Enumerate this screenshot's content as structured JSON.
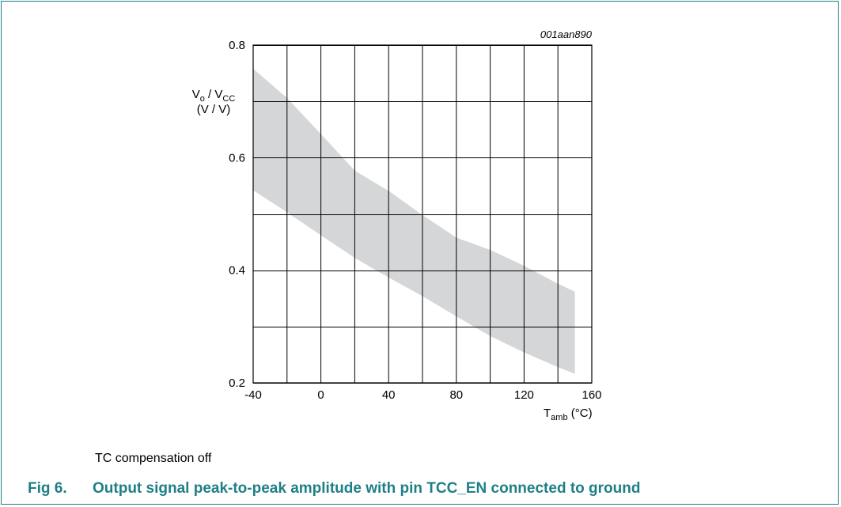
{
  "figure": {
    "id_label": "001aan890",
    "note": "TC compensation off",
    "caption_number": "Fig 6.",
    "caption_text": "Output signal peak-to-peak amplitude with pin TCC_EN connected to ground",
    "accent_color": "#1f7f86"
  },
  "chart_data": {
    "type": "area",
    "ylabel_main": "V",
    "ylabel_sub1": "o",
    "ylabel_mid": " / V",
    "ylabel_sub2": "CC",
    "ylabel_units": "(V / V)",
    "xlabel_main": "T",
    "xlabel_sub": "amb",
    "xlabel_units": " (°C)",
    "xlim": [
      -40,
      160
    ],
    "ylim": [
      0.2,
      0.8
    ],
    "xticks": [
      "-40",
      "0",
      "40",
      "80",
      "120",
      "160"
    ],
    "yticks": [
      "0.8",
      "0.6",
      "0.4",
      "0.2"
    ],
    "grid": true,
    "band": {
      "color": "#d4d6d8",
      "upper": [
        {
          "x": -40,
          "y": 0.758
        },
        {
          "x": -20,
          "y": 0.706
        },
        {
          "x": 0,
          "y": 0.642
        },
        {
          "x": 20,
          "y": 0.577
        },
        {
          "x": 40,
          "y": 0.541
        },
        {
          "x": 60,
          "y": 0.498
        },
        {
          "x": 80,
          "y": 0.458
        },
        {
          "x": 100,
          "y": 0.436
        },
        {
          "x": 120,
          "y": 0.408
        },
        {
          "x": 140,
          "y": 0.376
        },
        {
          "x": 150,
          "y": 0.362
        }
      ],
      "lower": [
        {
          "x": -40,
          "y": 0.542
        },
        {
          "x": -20,
          "y": 0.503
        },
        {
          "x": 0,
          "y": 0.462
        },
        {
          "x": 20,
          "y": 0.422
        },
        {
          "x": 40,
          "y": 0.387
        },
        {
          "x": 60,
          "y": 0.354
        },
        {
          "x": 80,
          "y": 0.318
        },
        {
          "x": 100,
          "y": 0.283
        },
        {
          "x": 120,
          "y": 0.254
        },
        {
          "x": 140,
          "y": 0.228
        },
        {
          "x": 150,
          "y": 0.216
        }
      ]
    }
  }
}
